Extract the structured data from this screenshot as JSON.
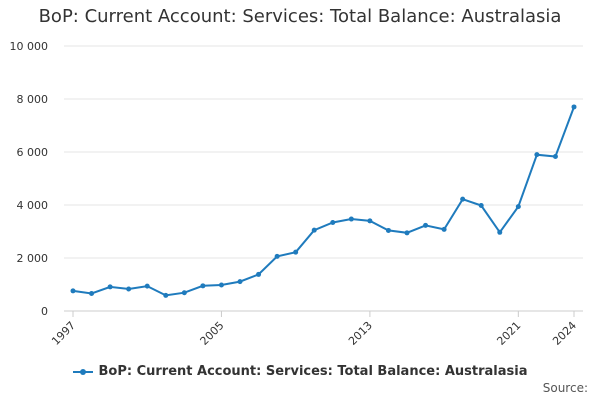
{
  "chart_data": {
    "type": "line",
    "title": "BoP: Current Account: Services: Total Balance: Australasia",
    "xlabel": "",
    "ylabel": "",
    "ylim": [
      0,
      10000
    ],
    "yticks": [
      0,
      2000,
      4000,
      6000,
      8000,
      10000
    ],
    "ytick_labels": [
      "0",
      "2 000",
      "4 000",
      "6 000",
      "8 000",
      "10 000"
    ],
    "xlim": [
      1997,
      2024
    ],
    "xticks": [
      1997,
      2005,
      2013,
      2021,
      2024
    ],
    "xtick_labels": [
      "1997",
      "2005",
      "2013",
      "2021",
      "2024"
    ],
    "grid": "horizontal",
    "legend_position": "bottom",
    "color": "#1f7bbd",
    "series": [
      {
        "name": "BoP: Current Account: Services: Total Balance: Australasia",
        "x": [
          1997,
          1998,
          1999,
          2000,
          2001,
          2002,
          2003,
          2004,
          2005,
          2006,
          2007,
          2008,
          2009,
          2010,
          2011,
          2012,
          2013,
          2014,
          2015,
          2016,
          2017,
          2018,
          2019,
          2020,
          2021,
          2022,
          2023,
          2024
        ],
        "values": [
          760,
          660,
          910,
          830,
          940,
          590,
          690,
          950,
          980,
          1110,
          1380,
          2060,
          2220,
          3050,
          3340,
          3470,
          3400,
          3040,
          2950,
          3230,
          3080,
          4220,
          3980,
          2970,
          3940,
          5900,
          5830,
          7700
        ]
      }
    ]
  },
  "source_label": "Source:"
}
